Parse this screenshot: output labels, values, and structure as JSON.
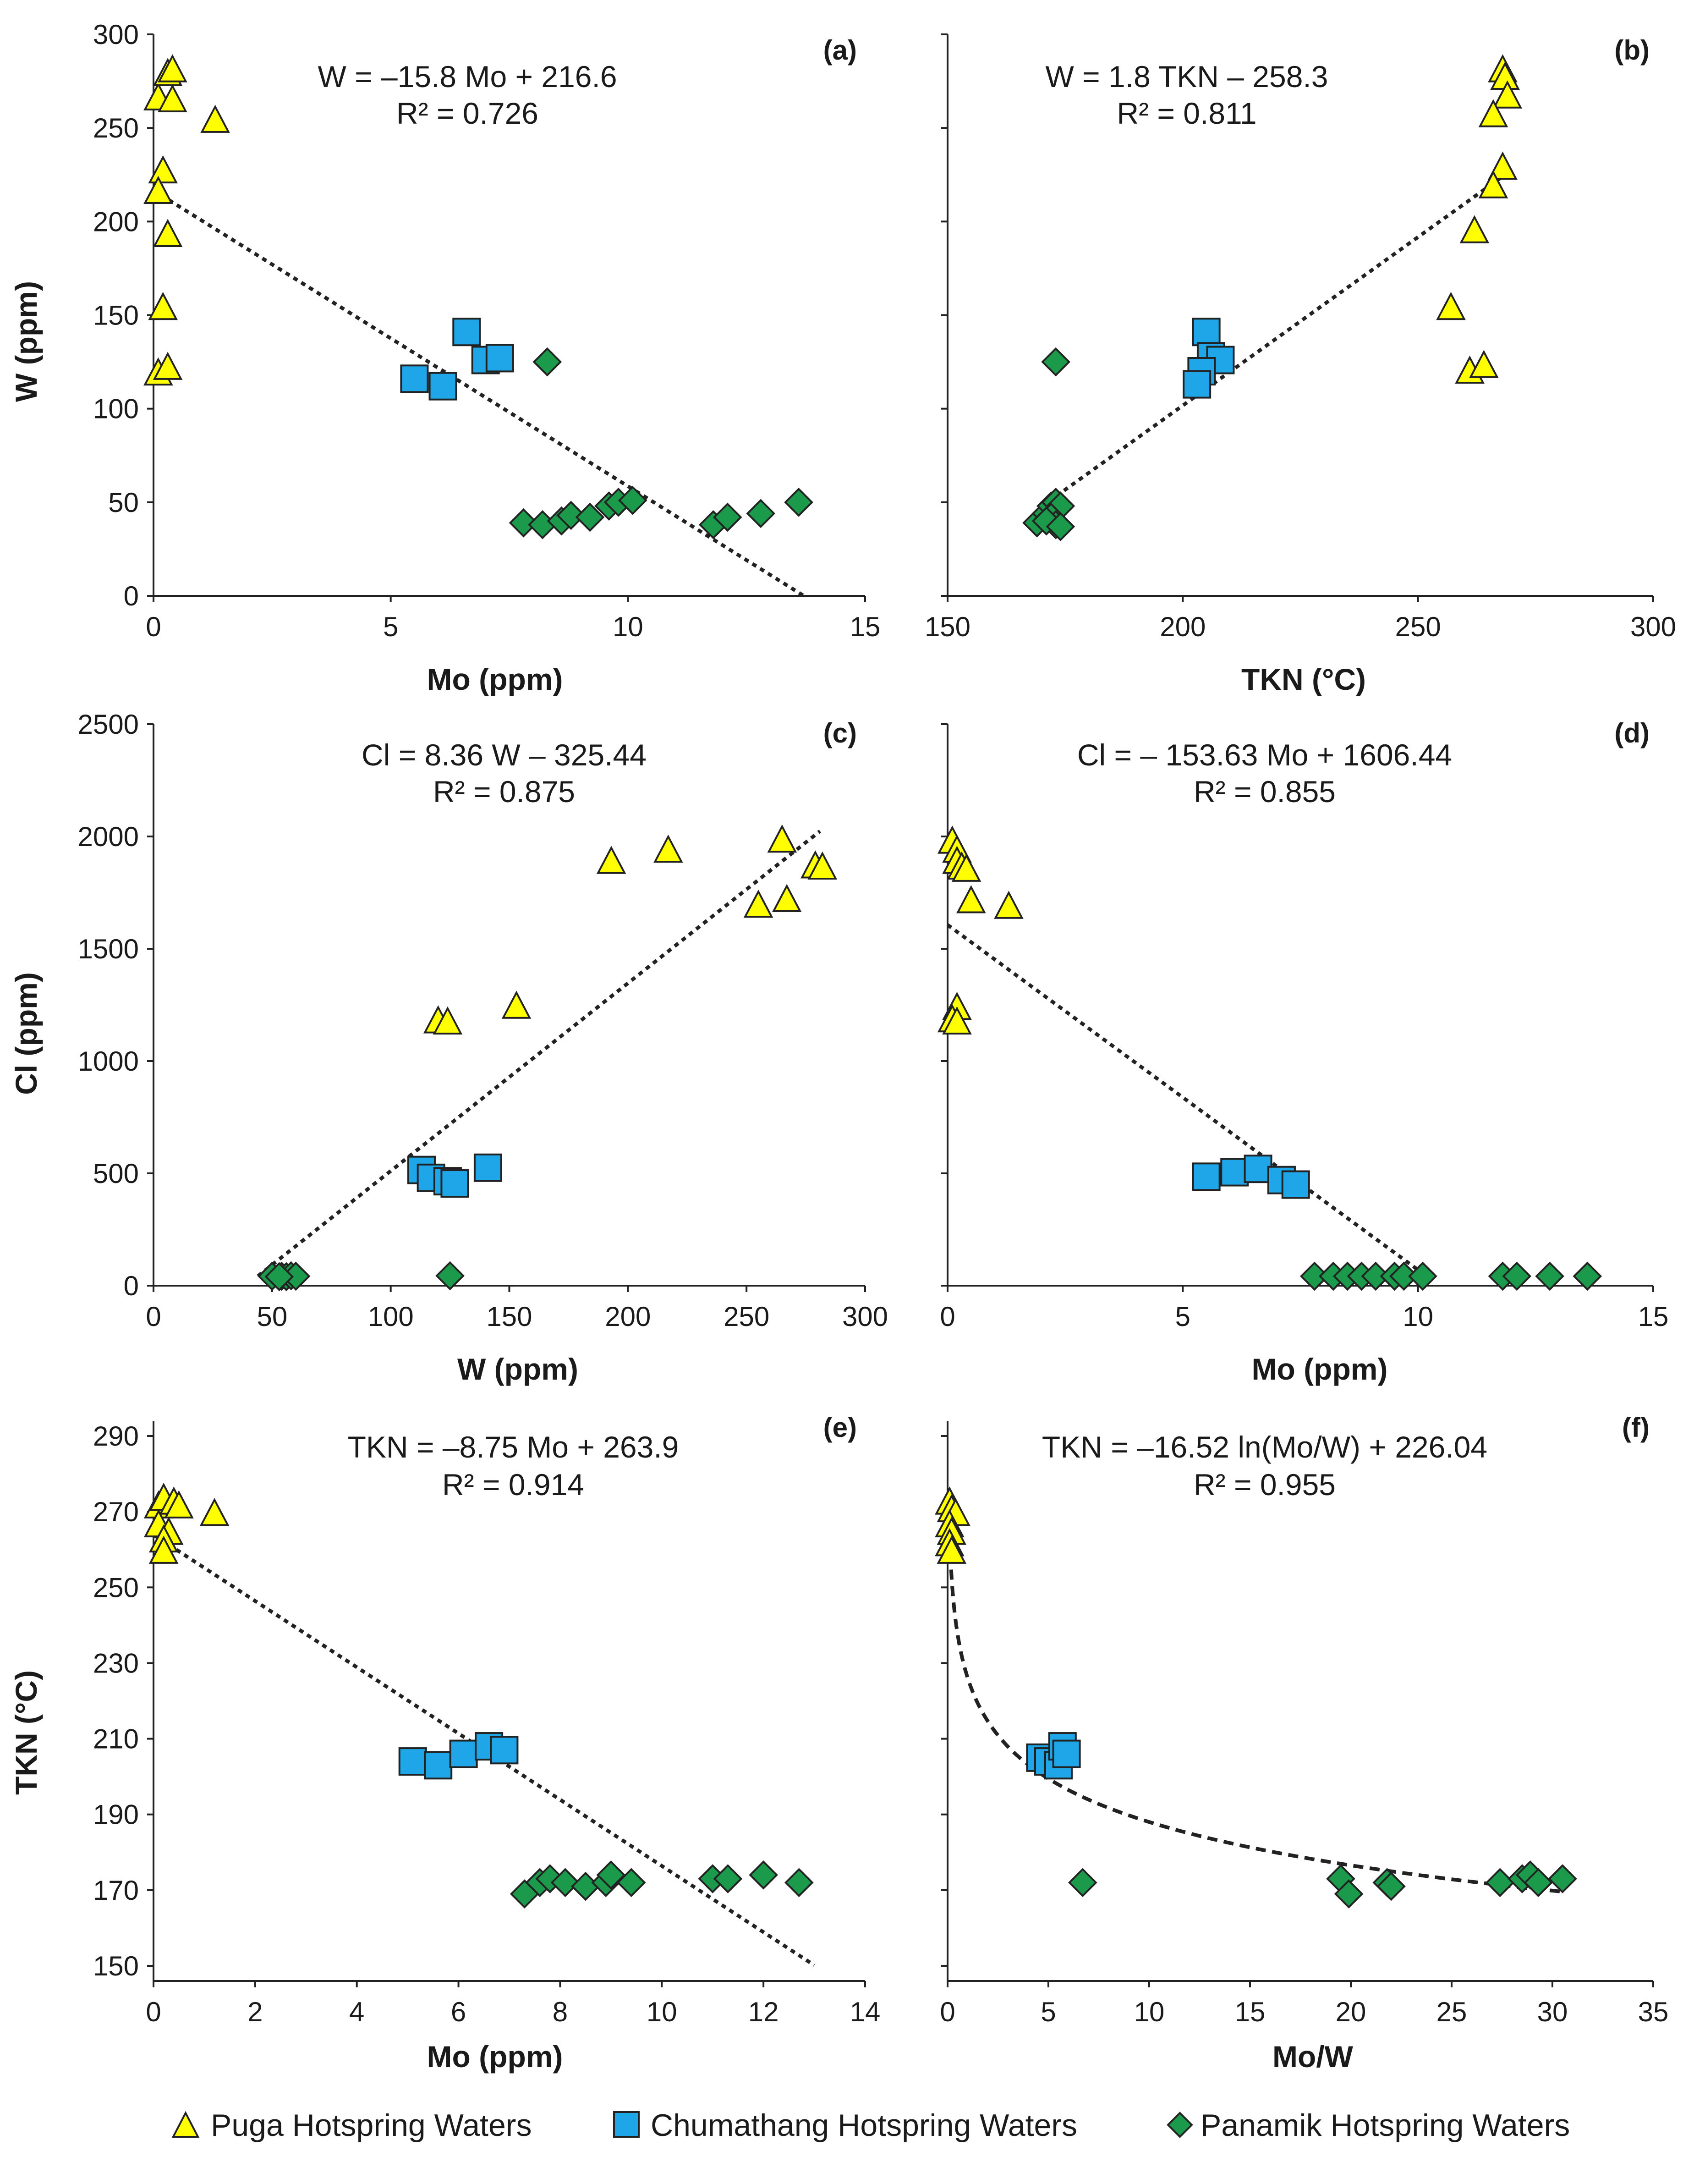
{
  "colors": {
    "puga": "#ffff00",
    "chumathang": "#1ea6e8",
    "panamik": "#1a9a4a",
    "stroke": "#222222",
    "trend": "#222222"
  },
  "legend": {
    "items": [
      {
        "key": "puga",
        "label": "Puga Hotspring Waters",
        "icon": "triangle-icon"
      },
      {
        "key": "chumathang",
        "label": "Chumathang Hotspring Waters",
        "icon": "square-icon"
      },
      {
        "key": "panamik",
        "label": "Panamik Hotspring Waters",
        "icon": "diamond-icon"
      }
    ]
  },
  "chart_data": [
    {
      "id": "a",
      "type": "scatter",
      "panel_label": "(a)",
      "xlabel": "Mo (ppm)",
      "ylabel": "W (ppm)",
      "xlim": [
        0,
        15
      ],
      "ylim": [
        0,
        300
      ],
      "xticks": [
        0,
        5,
        10,
        15
      ],
      "yticks": [
        0,
        50,
        100,
        150,
        200,
        250,
        300
      ],
      "equation": "W = –15.8 Mo + 216.6",
      "r2": "R² = 0.726",
      "trendline": {
        "kind": "linear",
        "slope": -15.8,
        "intercept": 216.6,
        "x_range": [
          0,
          13.7
        ],
        "dash": "fine"
      },
      "series": [
        {
          "name": "Puga Hotspring Waters",
          "key": "puga",
          "marker": "triangle",
          "points": [
            [
              0.1,
              265
            ],
            [
              0.4,
              264
            ],
            [
              0.3,
              278
            ],
            [
              0.4,
              280
            ],
            [
              1.3,
              253
            ],
            [
              0.2,
              226
            ],
            [
              0.1,
              215
            ],
            [
              0.3,
              192
            ],
            [
              0.2,
              153
            ],
            [
              0.1,
              118
            ],
            [
              0.3,
              121
            ]
          ]
        },
        {
          "name": "Chumathang Hotspring Waters",
          "key": "chumathang",
          "marker": "square",
          "points": [
            [
              6.6,
              141
            ],
            [
              5.5,
              116
            ],
            [
              6.1,
              112
            ],
            [
              7.0,
              126
            ],
            [
              7.3,
              127
            ]
          ]
        },
        {
          "name": "Panamik Hotspring Waters",
          "key": "panamik",
          "marker": "diamond",
          "points": [
            [
              8.3,
              125
            ],
            [
              7.8,
              39
            ],
            [
              8.2,
              38
            ],
            [
              8.6,
              40
            ],
            [
              8.8,
              43
            ],
            [
              9.2,
              42
            ],
            [
              9.6,
              48
            ],
            [
              9.8,
              50
            ],
            [
              10.1,
              51
            ],
            [
              11.8,
              38
            ],
            [
              12.1,
              42
            ],
            [
              12.8,
              44
            ],
            [
              13.6,
              50
            ]
          ]
        }
      ]
    },
    {
      "id": "b",
      "type": "scatter",
      "panel_label": "(b)",
      "xlabel": "TKN (°C)",
      "ylabel": "",
      "xlim": [
        150,
        300
      ],
      "ylim": [
        0,
        300
      ],
      "xticks": [
        150,
        200,
        250,
        300
      ],
      "yticks": [
        0,
        50,
        100,
        150,
        200,
        250,
        300
      ],
      "show_y_tick_labels": false,
      "equation": "W = 1.8 TKN – 258.3",
      "r2": "R² = 0.811",
      "trendline": {
        "kind": "linear",
        "slope": 1.8,
        "intercept": -258.3,
        "x_range": [
          170,
          268
        ],
        "dash": "fine"
      },
      "series": [
        {
          "name": "Puga Hotspring Waters",
          "key": "puga",
          "marker": "triangle",
          "points": [
            [
              268,
              280
            ],
            [
              268.5,
              276
            ],
            [
              269,
              266
            ],
            [
              266,
              256
            ],
            [
              268,
              228
            ],
            [
              266,
              218
            ],
            [
              262,
              194
            ],
            [
              257,
              153
            ],
            [
              261,
              119
            ],
            [
              264,
              122
            ]
          ]
        },
        {
          "name": "Chumathang Hotspring Waters",
          "key": "chumathang",
          "marker": "square",
          "points": [
            [
              205,
              141
            ],
            [
              206,
              128
            ],
            [
              208,
              126
            ],
            [
              204,
              120
            ],
            [
              203,
              113
            ]
          ]
        },
        {
          "name": "Panamik Hotspring Waters",
          "key": "panamik",
          "marker": "diamond",
          "points": [
            [
              173,
              125
            ],
            [
              169,
              39
            ],
            [
              171,
              44
            ],
            [
              172,
              48
            ],
            [
              173,
              50
            ],
            [
              174,
              48
            ],
            [
              172,
              42
            ],
            [
              173,
              38
            ],
            [
              171,
              40
            ],
            [
              174,
              37
            ]
          ]
        }
      ]
    },
    {
      "id": "c",
      "type": "scatter",
      "panel_label": "(c)",
      "xlabel": "W (ppm)",
      "ylabel": "Cl (ppm)",
      "xlim": [
        0,
        300
      ],
      "ylim": [
        0,
        2500
      ],
      "xticks": [
        0,
        50,
        100,
        150,
        200,
        250,
        300
      ],
      "yticks": [
        0,
        500,
        1000,
        1500,
        2000,
        2500
      ],
      "equation": "Cl = 8.36 W – 325.44",
      "r2": "R² = 0.875",
      "trendline": {
        "kind": "linear",
        "slope": 8.36,
        "intercept": -325.44,
        "x_range": [
          44,
          281
        ],
        "dash": "fine"
      },
      "series": [
        {
          "name": "Puga Hotspring Waters",
          "key": "puga",
          "marker": "triangle",
          "points": [
            [
              265,
              1975
            ],
            [
              217,
              1930
            ],
            [
              193,
              1880
            ],
            [
              279,
              1860
            ],
            [
              282,
              1855
            ],
            [
              267,
              1710
            ],
            [
              255,
              1685
            ],
            [
              153,
              1235
            ],
            [
              120,
              1170
            ],
            [
              124,
              1165
            ]
          ]
        },
        {
          "name": "Chumathang Hotspring Waters",
          "key": "chumathang",
          "marker": "square",
          "points": [
            [
              113,
              515
            ],
            [
              117,
              480
            ],
            [
              124,
              465
            ],
            [
              127,
              455
            ],
            [
              141,
              525
            ]
          ]
        },
        {
          "name": "Panamik Hotspring Waters",
          "key": "panamik",
          "marker": "diamond",
          "points": [
            [
              50,
              42
            ],
            [
              54,
              42
            ],
            [
              56,
              40
            ],
            [
              58,
              44
            ],
            [
              60,
              42
            ],
            [
              53,
              40
            ],
            [
              125,
              44
            ]
          ]
        }
      ]
    },
    {
      "id": "d",
      "type": "scatter",
      "panel_label": "(d)",
      "xlabel": "Mo (ppm)",
      "ylabel": "",
      "xlim": [
        0,
        15
      ],
      "ylim": [
        0,
        2500
      ],
      "xticks": [
        0,
        5,
        10,
        15
      ],
      "yticks": [
        0,
        500,
        1000,
        1500,
        2000,
        2500
      ],
      "show_y_tick_labels": false,
      "equation": "Cl = – 153.63 Mo + 1606.44",
      "r2": "R² = 0.855",
      "trendline": {
        "kind": "linear",
        "slope": -153.63,
        "intercept": 1606.44,
        "x_range": [
          0,
          10.3
        ],
        "dash": "fine"
      },
      "series": [
        {
          "name": "Puga Hotspring Waters",
          "key": "puga",
          "marker": "triangle",
          "points": [
            [
              0.1,
              1970
            ],
            [
              0.2,
              1930
            ],
            [
              0.2,
              1880
            ],
            [
              0.3,
              1855
            ],
            [
              0.4,
              1845
            ],
            [
              0.5,
              1705
            ],
            [
              1.3,
              1680
            ],
            [
              0.2,
              1230
            ],
            [
              0.1,
              1175
            ],
            [
              0.2,
              1165
            ]
          ]
        },
        {
          "name": "Chumathang Hotspring Waters",
          "key": "chumathang",
          "marker": "square",
          "points": [
            [
              5.5,
              485
            ],
            [
              6.1,
              505
            ],
            [
              6.6,
              520
            ],
            [
              7.1,
              470
            ],
            [
              7.4,
              450
            ]
          ]
        },
        {
          "name": "Panamik Hotspring Waters",
          "key": "panamik",
          "marker": "diamond",
          "points": [
            [
              7.8,
              42
            ],
            [
              8.2,
              42
            ],
            [
              8.5,
              42
            ],
            [
              8.8,
              42
            ],
            [
              9.1,
              42
            ],
            [
              9.5,
              42
            ],
            [
              9.7,
              42
            ],
            [
              10.1,
              42
            ],
            [
              11.8,
              42
            ],
            [
              12.1,
              42
            ],
            [
              12.8,
              42
            ],
            [
              13.6,
              42
            ]
          ]
        }
      ]
    },
    {
      "id": "e",
      "type": "scatter",
      "panel_label": "(e)",
      "xlabel": "Mo (ppm)",
      "ylabel": "TKN (°C)",
      "xlim": [
        0,
        14
      ],
      "ylim": [
        146,
        294
      ],
      "xticks": [
        0,
        2,
        4,
        6,
        8,
        10,
        12,
        14
      ],
      "yticks": [
        150,
        170,
        190,
        210,
        230,
        250,
        270,
        290
      ],
      "equation": "TKN = –8.75 Mo + 263.9",
      "r2": "R² = 0.914",
      "trendline": {
        "kind": "linear",
        "slope": -8.75,
        "intercept": 263.9,
        "x_range": [
          0,
          13.0
        ],
        "dash": "fine"
      },
      "series": [
        {
          "name": "Puga Hotspring Waters",
          "key": "puga",
          "marker": "triangle",
          "points": [
            [
              0.1,
              271
            ],
            [
              0.2,
              273
            ],
            [
              0.4,
              272
            ],
            [
              0.5,
              271
            ],
            [
              0.1,
              266
            ],
            [
              0.3,
              264
            ],
            [
              0.2,
              262
            ],
            [
              0.2,
              259
            ],
            [
              1.2,
              269
            ]
          ]
        },
        {
          "name": "Chumathang Hotspring Waters",
          "key": "chumathang",
          "marker": "square",
          "points": [
            [
              5.1,
              204
            ],
            [
              5.6,
              203
            ],
            [
              6.1,
              206
            ],
            [
              6.6,
              208
            ],
            [
              6.9,
              207
            ]
          ]
        },
        {
          "name": "Panamik Hotspring Waters",
          "key": "panamik",
          "marker": "diamond",
          "points": [
            [
              7.3,
              169
            ],
            [
              7.6,
              172
            ],
            [
              7.8,
              173
            ],
            [
              8.1,
              172
            ],
            [
              8.5,
              171
            ],
            [
              8.9,
              172
            ],
            [
              9.0,
              174
            ],
            [
              9.4,
              172
            ],
            [
              11.0,
              173
            ],
            [
              11.3,
              173
            ],
            [
              12.0,
              174
            ],
            [
              12.7,
              172
            ]
          ]
        }
      ]
    },
    {
      "id": "f",
      "type": "scatter",
      "panel_label": "(f)",
      "xlabel": "Mo/W",
      "ylabel": "",
      "xlim": [
        0,
        35
      ],
      "ylim": [
        146,
        294
      ],
      "xticks": [
        0,
        5,
        10,
        15,
        20,
        25,
        30,
        35
      ],
      "yticks": [
        150,
        170,
        190,
        210,
        230,
        250,
        270,
        290
      ],
      "show_y_tick_labels": false,
      "equation": "TKN = –16.52 ln(Mo/W) + 226.04",
      "r2": "R² = 0.955",
      "trendline": {
        "kind": "log",
        "a": -16.52,
        "b": 226.04,
        "x_range": [
          0.08,
          30.5
        ],
        "dash": "coarse"
      },
      "series": [
        {
          "name": "Puga Hotspring Waters",
          "key": "puga",
          "marker": "triangle",
          "points": [
            [
              0.1,
              272
            ],
            [
              0.2,
              270
            ],
            [
              0.4,
              269
            ],
            [
              0.1,
              266
            ],
            [
              0.2,
              264
            ],
            [
              0.1,
              261
            ],
            [
              0.2,
              259
            ]
          ]
        },
        {
          "name": "Chumathang Hotspring Waters",
          "key": "chumathang",
          "marker": "square",
          "points": [
            [
              4.6,
              205
            ],
            [
              5.0,
              204
            ],
            [
              5.5,
              203
            ],
            [
              5.7,
              208
            ],
            [
              5.9,
              206
            ]
          ]
        },
        {
          "name": "Panamik Hotspring Waters",
          "key": "panamik",
          "marker": "diamond",
          "points": [
            [
              6.7,
              172
            ],
            [
              19.5,
              173
            ],
            [
              19.9,
              169
            ],
            [
              21.8,
              172
            ],
            [
              22.0,
              171
            ],
            [
              27.4,
              172
            ],
            [
              28.5,
              173
            ],
            [
              28.9,
              174
            ],
            [
              29.3,
              172
            ],
            [
              30.5,
              173
            ]
          ]
        }
      ]
    }
  ]
}
